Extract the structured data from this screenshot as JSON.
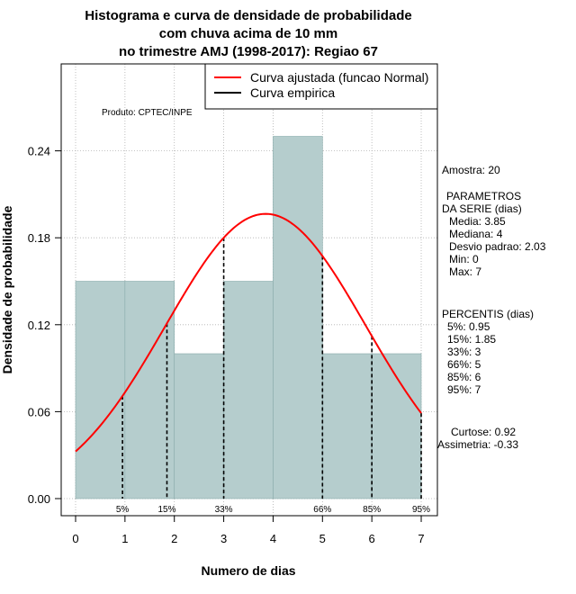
{
  "chart_data": {
    "type": "bar",
    "title_lines": [
      "Histograma e curva de densidade de probabilidade",
      "com chuva acima de 10 mm",
      "no trimestre AMJ (1998-2017): Regiao 67"
    ],
    "xlabel": "Numero de dias",
    "ylabel": "Densidade de probabilidade",
    "xlim": [
      -0.3,
      7.3
    ],
    "ylim": [
      0,
      0.3
    ],
    "x_ticks": [
      0,
      1,
      2,
      3,
      4,
      5,
      6,
      7
    ],
    "x_tick_labels": [
      "0",
      "1",
      "2",
      "3",
      "4",
      "5",
      "6",
      "7"
    ],
    "y_ticks": [
      0,
      0.06,
      0.12,
      0.18,
      0.24
    ],
    "y_tick_labels": [
      "0.00",
      "0.06",
      "0.12",
      "0.18",
      "0.24"
    ],
    "grid": true,
    "product_label": "Produto: CPTEC/INPE",
    "bars": [
      {
        "x0": 0,
        "x1": 1,
        "density": 0.15
      },
      {
        "x0": 1,
        "x1": 2,
        "density": 0.15
      },
      {
        "x0": 2,
        "x1": 3,
        "density": 0.1
      },
      {
        "x0": 3,
        "x1": 4,
        "density": 0.15
      },
      {
        "x0": 4,
        "x1": 5,
        "density": 0.25
      },
      {
        "x0": 5,
        "x1": 6,
        "density": 0.1
      },
      {
        "x0": 6,
        "x1": 7,
        "density": 0.1
      }
    ],
    "normal_fit": {
      "mean": 3.85,
      "sd": 2.03,
      "x_range": [
        0,
        7
      ],
      "color": "#ff0000"
    },
    "bar_color": "#b5cdcd",
    "percentile_lines": [
      {
        "x": 0.95,
        "label": "5%"
      },
      {
        "x": 1.85,
        "label": "15%"
      },
      {
        "x": 3,
        "label": "33%"
      },
      {
        "x": 5,
        "label": "66%"
      },
      {
        "x": 6,
        "label": "85%"
      },
      {
        "x": 7,
        "label": "95%"
      }
    ],
    "legend": {
      "position": "top-right",
      "entries": [
        {
          "label": "Curva ajustada (funcao Normal)",
          "color": "#ff0000"
        },
        {
          "label": "Curva empirica",
          "color": "#000000"
        }
      ]
    },
    "stats": {
      "amostra": "Amostra: 20",
      "params_header_1": "PARAMETROS",
      "params_header_2": "DA SERIE (dias)",
      "params": [
        "Media: 3.85",
        "Mediana: 4",
        "Desvio padrao: 2.03",
        "Min: 0",
        "Max: 7"
      ],
      "percentis_header": "PERCENTIS (dias)",
      "percentis": [
        "5%: 0.95",
        "15%: 1.85",
        "33%: 3",
        "66%: 5",
        "85%: 6",
        "95%: 7"
      ],
      "curtose": "Curtose: 0.92",
      "assimetria": "Assimetria: -0.33"
    }
  }
}
